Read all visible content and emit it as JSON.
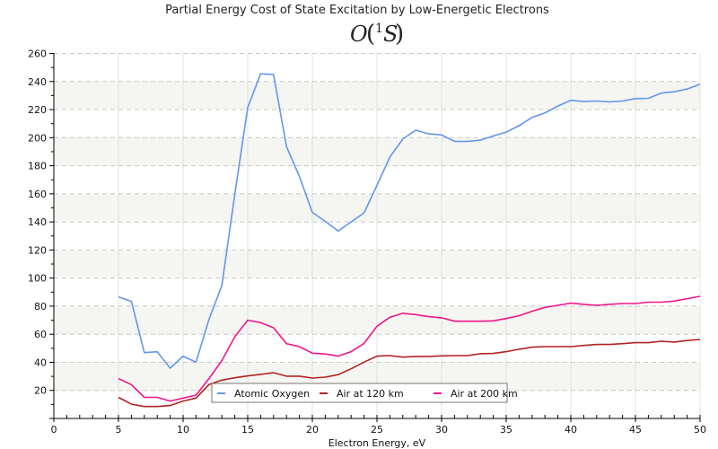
{
  "chart_data": {
    "type": "line",
    "title": "Partial Energy Cost of State Excitation by Low-Energetic Electrons",
    "subtitle": {
      "base": "O",
      "open": "(",
      "superscript": "1",
      "term": "S",
      "close": ")"
    },
    "xlabel": "Electron Energy, eV",
    "ylabel": "",
    "xlim": [
      0,
      50
    ],
    "ylim": [
      0,
      260
    ],
    "x_major_ticks": [
      0,
      5,
      10,
      15,
      20,
      25,
      30,
      35,
      40,
      45,
      50
    ],
    "x_minor_step": 1,
    "y_major_ticks": [
      20,
      40,
      60,
      80,
      100,
      120,
      140,
      160,
      180,
      200,
      220,
      240,
      260
    ],
    "y_minor_step": 10,
    "grid": {
      "x": "solid",
      "y": "dashed",
      "banded_background": true
    },
    "legend_position": "bottom-center",
    "x": [
      5,
      6,
      7,
      8,
      9,
      10,
      11,
      12,
      13,
      14,
      15,
      16,
      17,
      18,
      19,
      20,
      21,
      22,
      23,
      24,
      25,
      26,
      27,
      28,
      29,
      30,
      31,
      32,
      33,
      34,
      35,
      36,
      37,
      38,
      39,
      40,
      41,
      42,
      43,
      44,
      45,
      46,
      47,
      48,
      49,
      50
    ],
    "series": [
      {
        "name": "Atomic Oxygen",
        "color": "#6495ed",
        "values": [
          86.6,
          83.4,
          46.9,
          47.5,
          35.8,
          44.4,
          40.1,
          70.5,
          94.7,
          159.6,
          221.4,
          245.5,
          244.9,
          193.7,
          172.4,
          146.8,
          140.4,
          133.5,
          140.0,
          146.4,
          166.0,
          186.2,
          199.0,
          205.4,
          202.7,
          202.0,
          197.3,
          197.3,
          198.2,
          201.2,
          204.0,
          208.6,
          214.4,
          217.6,
          222.5,
          226.6,
          225.7,
          226.1,
          225.5,
          226.1,
          227.8,
          228.0,
          231.7,
          232.7,
          234.7,
          238.0
        ]
      },
      {
        "name": "Air at 120 km",
        "color": "#b22222",
        "values": [
          15.0,
          10.2,
          8.5,
          8.5,
          9.2,
          12.4,
          14.5,
          24.1,
          27.3,
          29.0,
          30.3,
          31.4,
          32.6,
          30.1,
          30.1,
          28.8,
          29.4,
          31.2,
          35.4,
          40.1,
          44.4,
          44.8,
          43.7,
          44.2,
          44.2,
          44.6,
          44.8,
          44.8,
          46.1,
          46.3,
          47.6,
          49.3,
          50.8,
          51.2,
          51.2,
          51.2,
          52.0,
          52.7,
          52.7,
          53.3,
          54.0,
          54.0,
          55.0,
          54.4,
          55.5,
          56.3
        ]
      },
      {
        "name": "Air at 200 km",
        "color": "#f0168c",
        "values": [
          28.4,
          24.1,
          15.0,
          15.0,
          12.4,
          14.5,
          16.6,
          28.4,
          41.2,
          58.2,
          70.0,
          68.3,
          64.6,
          53.3,
          51.2,
          46.5,
          45.9,
          44.4,
          47.6,
          53.5,
          65.7,
          72.1,
          74.9,
          74.0,
          72.5,
          71.7,
          69.3,
          69.3,
          69.3,
          69.5,
          71.2,
          73.2,
          76.4,
          79.1,
          80.6,
          82.1,
          81.3,
          80.6,
          81.3,
          81.9,
          81.9,
          82.8,
          82.8,
          83.6,
          85.3,
          87.0
        ]
      }
    ]
  }
}
